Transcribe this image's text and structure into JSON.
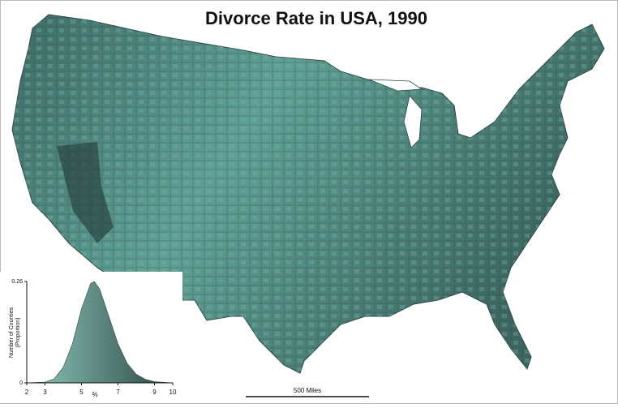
{
  "title": "Divorce Rate in USA, 1990",
  "scale_bar": "500 Miles",
  "chart_data": {
    "type": "area",
    "x_label": "%",
    "y_label": [
      "Number of Counties",
      "(Proportion)"
    ],
    "x": [
      2,
      3,
      3.5,
      4,
      4.5,
      5,
      5.5,
      5.7,
      6,
      6.5,
      7,
      7.5,
      8,
      8.5,
      9,
      10
    ],
    "values": [
      0,
      0.002,
      0.01,
      0.04,
      0.1,
      0.19,
      0.255,
      0.26,
      0.24,
      0.17,
      0.1,
      0.05,
      0.022,
      0.009,
      0.003,
      0
    ],
    "xlim": [
      2,
      10
    ],
    "ylim": [
      0,
      0.26
    ],
    "xticks": [
      2,
      3,
      5,
      7,
      9,
      10
    ],
    "yticks": [
      0,
      0.26
    ],
    "color": [
      "#8cc9bb",
      "#2c4542"
    ]
  }
}
